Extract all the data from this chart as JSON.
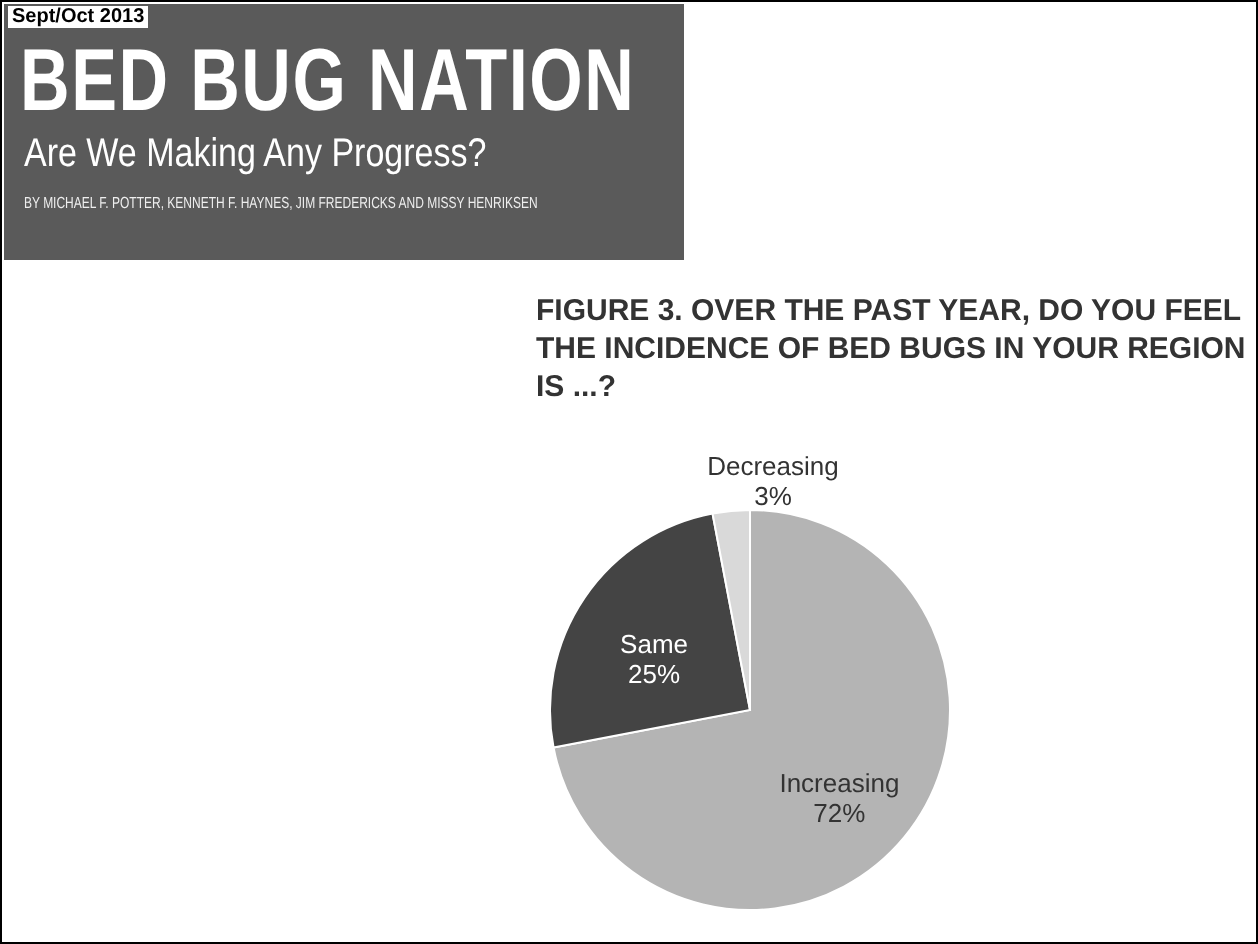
{
  "chart_data": {
    "type": "pie",
    "title": "FIGURE 3. OVER THE PAST YEAR, DO YOU FEEL THE INCIDENCE OF BED BUGS IN YOUR REGION IS ...?",
    "annotations": [
      "Sept/Oct 2013",
      "BED BUG NATION",
      "Are We Making Any Progress?",
      "BY MICHAEL F. POTTER, KENNETH F. HAYNES, JIM FREDERICKS AND MISSY HENRIKSEN"
    ],
    "categories": [
      "Increasing",
      "Same",
      "Decreasing"
    ],
    "values": [
      72,
      25,
      3
    ],
    "value_labels": [
      "72%",
      "25%",
      "3%"
    ],
    "colors": [
      "#b4b4b4",
      "#444444",
      "#d9d9d9"
    ],
    "legend": false
  }
}
